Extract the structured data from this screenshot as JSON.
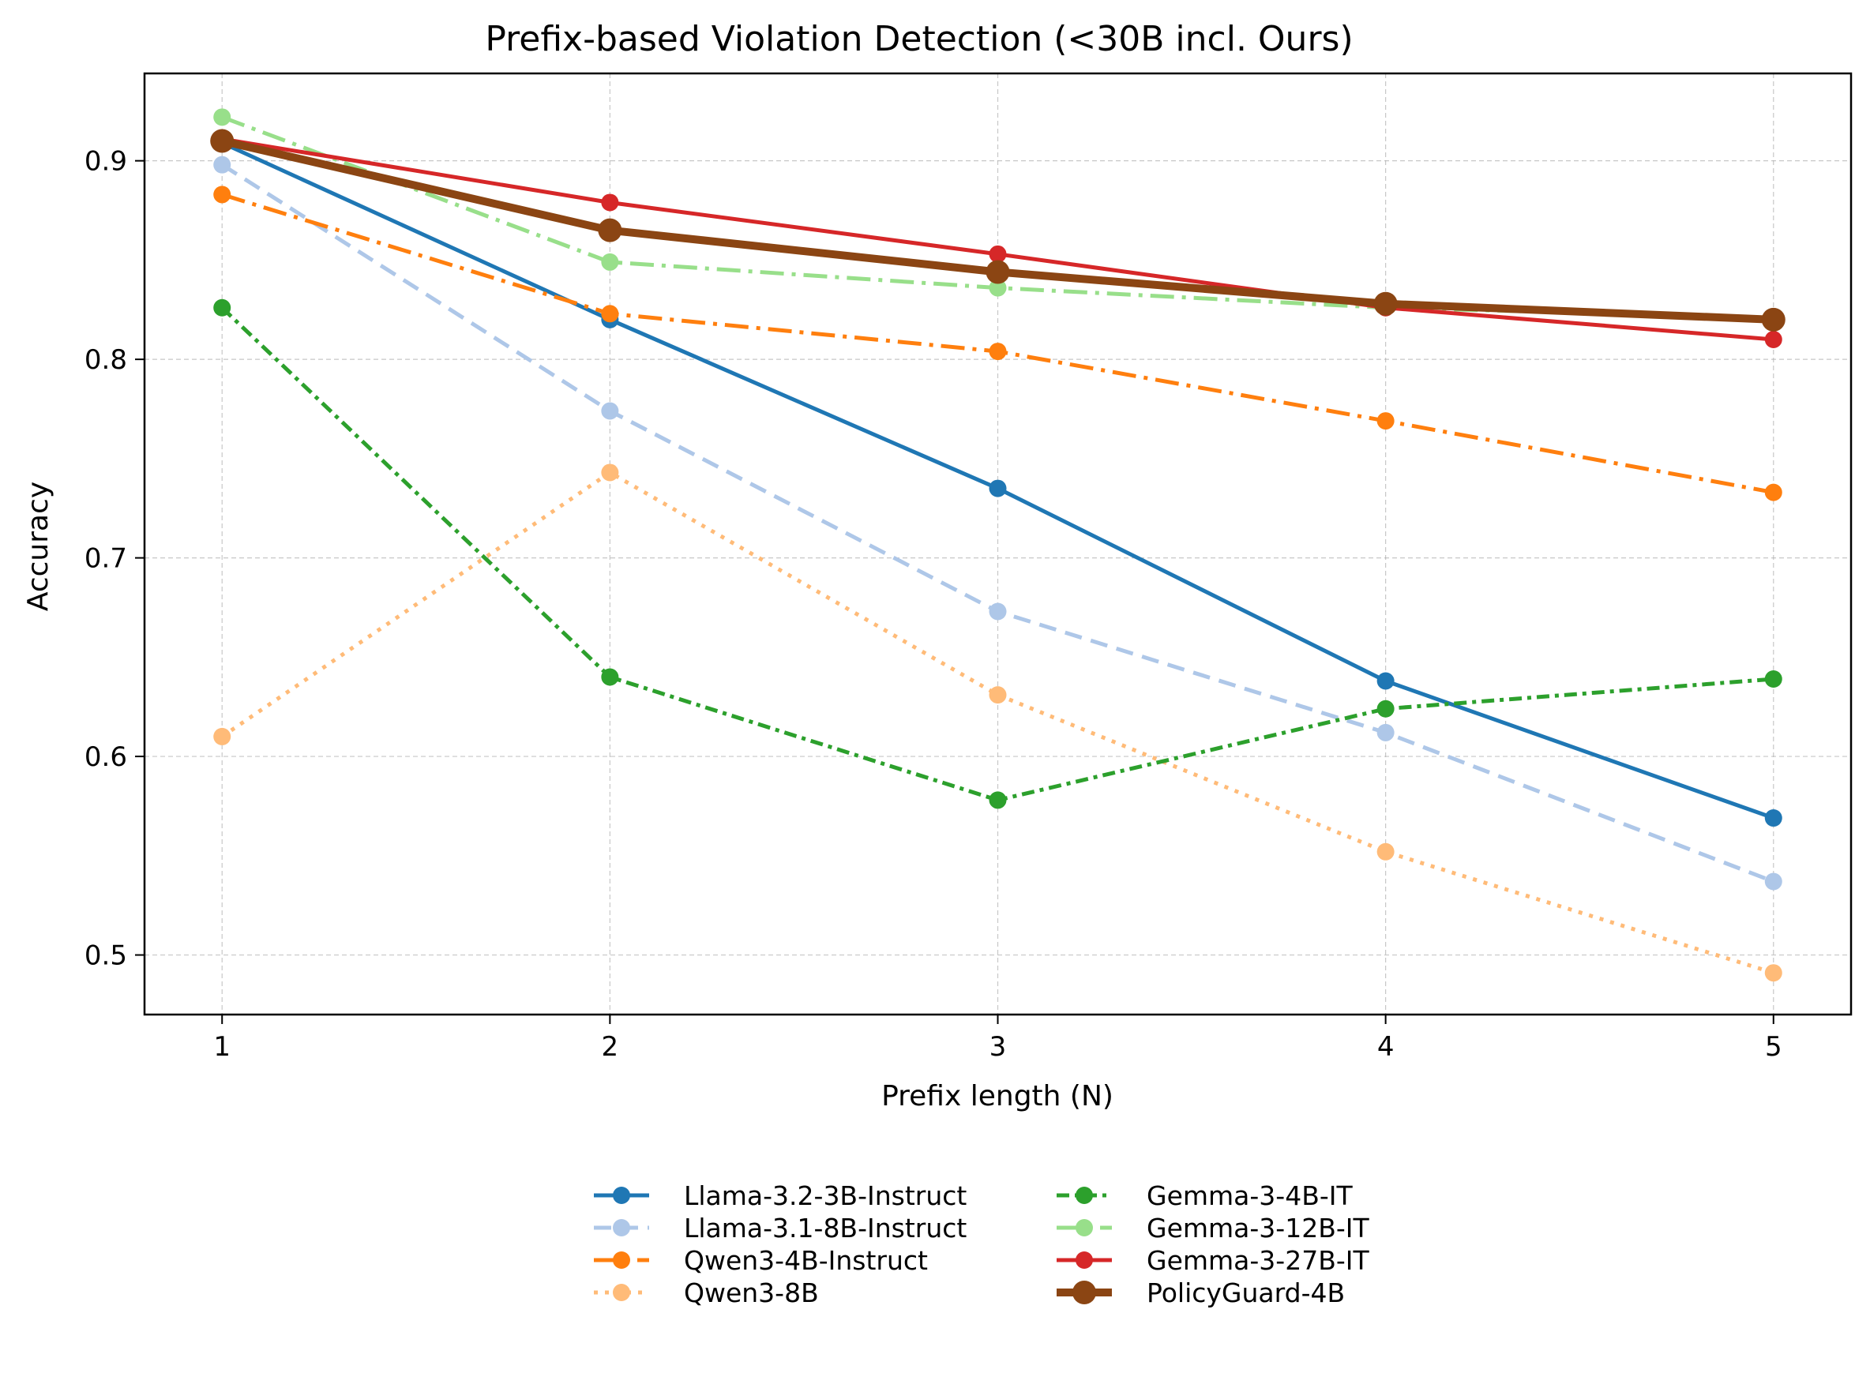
{
  "chart_data": {
    "type": "line",
    "title": "Prefix-based Violation Detection (<30B incl. Ours)",
    "xlabel": "Prefix length (N)",
    "ylabel": "Accuracy",
    "x": [
      1,
      2,
      3,
      4,
      5
    ],
    "x_tick_labels": [
      "1",
      "2",
      "3",
      "4",
      "5"
    ],
    "y_ticks": [
      0.5,
      0.6,
      0.7,
      0.8,
      0.9
    ],
    "y_tick_labels": [
      "0.5",
      "0.6",
      "0.7",
      "0.8",
      "0.9"
    ],
    "xlim": [
      0.8,
      5.2
    ],
    "ylim": [
      0.47,
      0.944
    ],
    "grid": true,
    "legend_position": "bottom-center",
    "series": [
      {
        "name": "Llama-3.2-3B-Instruct",
        "values": [
          0.909,
          0.82,
          0.735,
          0.638,
          0.569
        ],
        "color": "#1f77b4",
        "style": "solid",
        "width": 5,
        "marker": 11
      },
      {
        "name": "Llama-3.1-8B-Instruct",
        "values": [
          0.898,
          0.774,
          0.673,
          0.612,
          0.537
        ],
        "color": "#aec7e8",
        "style": "dashed",
        "width": 5,
        "marker": 11
      },
      {
        "name": "Qwen3-4B-Instruct",
        "values": [
          0.883,
          0.823,
          0.804,
          0.769,
          0.733
        ],
        "color": "#ff7f0e",
        "style": "dashdot",
        "width": 5,
        "marker": 11
      },
      {
        "name": "Qwen3-8B",
        "values": [
          0.61,
          0.743,
          0.631,
          0.552,
          0.491
        ],
        "color": "#ffbb78",
        "style": "dotted",
        "width": 5,
        "marker": 11
      },
      {
        "name": "Gemma-3-4B-IT",
        "values": [
          0.826,
          0.64,
          0.578,
          0.624,
          0.639
        ],
        "color": "#2ca02c",
        "style": "densedashdot",
        "width": 5,
        "marker": 11
      },
      {
        "name": "Gemma-3-12B-IT",
        "values": [
          0.922,
          0.849,
          0.836,
          0.826,
          0.821
        ],
        "color": "#98df8a",
        "style": "dashdot",
        "width": 5,
        "marker": 11
      },
      {
        "name": "Gemma-3-27B-IT",
        "values": [
          0.911,
          0.879,
          0.853,
          0.826,
          0.81
        ],
        "color": "#d62728",
        "style": "solid",
        "width": 5,
        "marker": 11
      },
      {
        "name": "PolicyGuard-4B",
        "values": [
          0.91,
          0.865,
          0.844,
          0.828,
          0.82
        ],
        "color": "#8b4513",
        "style": "solid",
        "width": 10,
        "marker": 15
      }
    ]
  }
}
